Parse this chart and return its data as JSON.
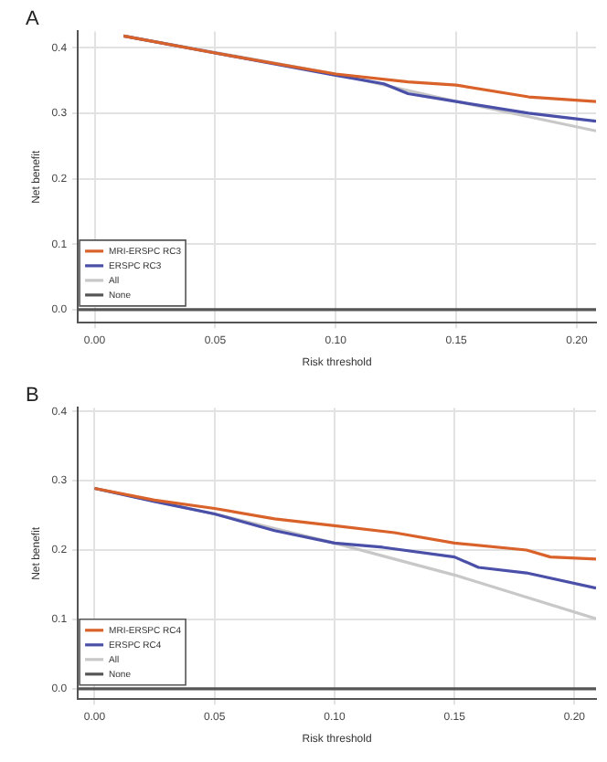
{
  "chart_data": [
    {
      "type": "line",
      "title": "A",
      "xlabel": "Risk threshold",
      "ylabel": "Net benefit",
      "xlim": [
        -0.007,
        0.208
      ],
      "ylim": [
        -0.02,
        0.425
      ],
      "xticks": [
        {
          "value": 0,
          "label": "0.00"
        },
        {
          "value": 0.05,
          "label": "0.05"
        },
        {
          "value": 0.1,
          "label": "0.10"
        },
        {
          "value": 0.15,
          "label": "0.15"
        },
        {
          "value": 0.2,
          "label": "0.20"
        }
      ],
      "yticks": [
        {
          "value": 0,
          "label": "0.0"
        },
        {
          "value": 0.1,
          "label": "0.1"
        },
        {
          "value": 0.2,
          "label": "0.2"
        },
        {
          "value": 0.3,
          "label": "0.3"
        },
        {
          "value": 0.4,
          "label": "0.4"
        }
      ],
      "grid": true,
      "legend": "bottom left",
      "line_style": "solid",
      "marker": "none",
      "series": [
        {
          "name": "MRI-ERSPC RC3",
          "color": "#d9622b",
          "x": [
            0.012,
            0.05,
            0.1,
            0.13,
            0.15,
            0.18,
            0.208
          ],
          "values": [
            0.418,
            0.392,
            0.36,
            0.348,
            0.343,
            0.325,
            0.318
          ]
        },
        {
          "name": "ERSPC RC3",
          "color": "#4a4fa8",
          "x": [
            0.012,
            0.05,
            0.1,
            0.12,
            0.13,
            0.15,
            0.18,
            0.208
          ],
          "values": [
            0.418,
            0.392,
            0.358,
            0.345,
            0.33,
            0.318,
            0.3,
            0.288
          ]
        },
        {
          "name": "All",
          "color": "#c8c8c8",
          "x": [
            0.012,
            0.05,
            0.1,
            0.15,
            0.208
          ],
          "values": [
            0.418,
            0.393,
            0.36,
            0.318,
            0.273
          ]
        },
        {
          "name": "None",
          "color": "#555555",
          "x": [
            -0.007,
            0.208
          ],
          "values": [
            0,
            0
          ]
        }
      ]
    },
    {
      "type": "line",
      "title": "B",
      "xlabel": "Risk threshold",
      "ylabel": "Net benefit",
      "xlim": [
        -0.007,
        0.209
      ],
      "ylim": [
        -0.015,
        0.405
      ],
      "xticks": [
        {
          "value": 0,
          "label": "0.00"
        },
        {
          "value": 0.05,
          "label": "0.05"
        },
        {
          "value": 0.1,
          "label": "0.10"
        },
        {
          "value": 0.15,
          "label": "0.15"
        },
        {
          "value": 0.2,
          "label": "0.20"
        }
      ],
      "yticks": [
        {
          "value": 0,
          "label": "0.0"
        },
        {
          "value": 0.1,
          "label": "0.1"
        },
        {
          "value": 0.2,
          "label": "0.2"
        },
        {
          "value": 0.3,
          "label": "0.3"
        },
        {
          "value": 0.4,
          "label": "0.4"
        }
      ],
      "grid": true,
      "legend": "bottom left",
      "line_style": "solid",
      "marker": "none",
      "series": [
        {
          "name": "MRI-ERSPC RC4",
          "color": "#d9622b",
          "x": [
            0,
            0.025,
            0.05,
            0.075,
            0.1,
            0.125,
            0.15,
            0.18,
            0.19,
            0.209
          ],
          "values": [
            0.289,
            0.272,
            0.26,
            0.245,
            0.235,
            0.225,
            0.21,
            0.2,
            0.19,
            0.187
          ]
        },
        {
          "name": "ERSPC RC4",
          "color": "#4a4fa8",
          "x": [
            0,
            0.025,
            0.05,
            0.075,
            0.1,
            0.12,
            0.15,
            0.16,
            0.18,
            0.209
          ],
          "values": [
            0.289,
            0.27,
            0.252,
            0.228,
            0.21,
            0.204,
            0.19,
            0.175,
            0.167,
            0.145
          ]
        },
        {
          "name": "All",
          "color": "#c8c8c8",
          "x": [
            0,
            0.05,
            0.1,
            0.15,
            0.209
          ],
          "values": [
            0.289,
            0.252,
            0.21,
            0.164,
            0.101
          ]
        },
        {
          "name": "None",
          "color": "#555555",
          "x": [
            -0.007,
            0.209
          ],
          "values": [
            0,
            0
          ]
        }
      ]
    }
  ]
}
